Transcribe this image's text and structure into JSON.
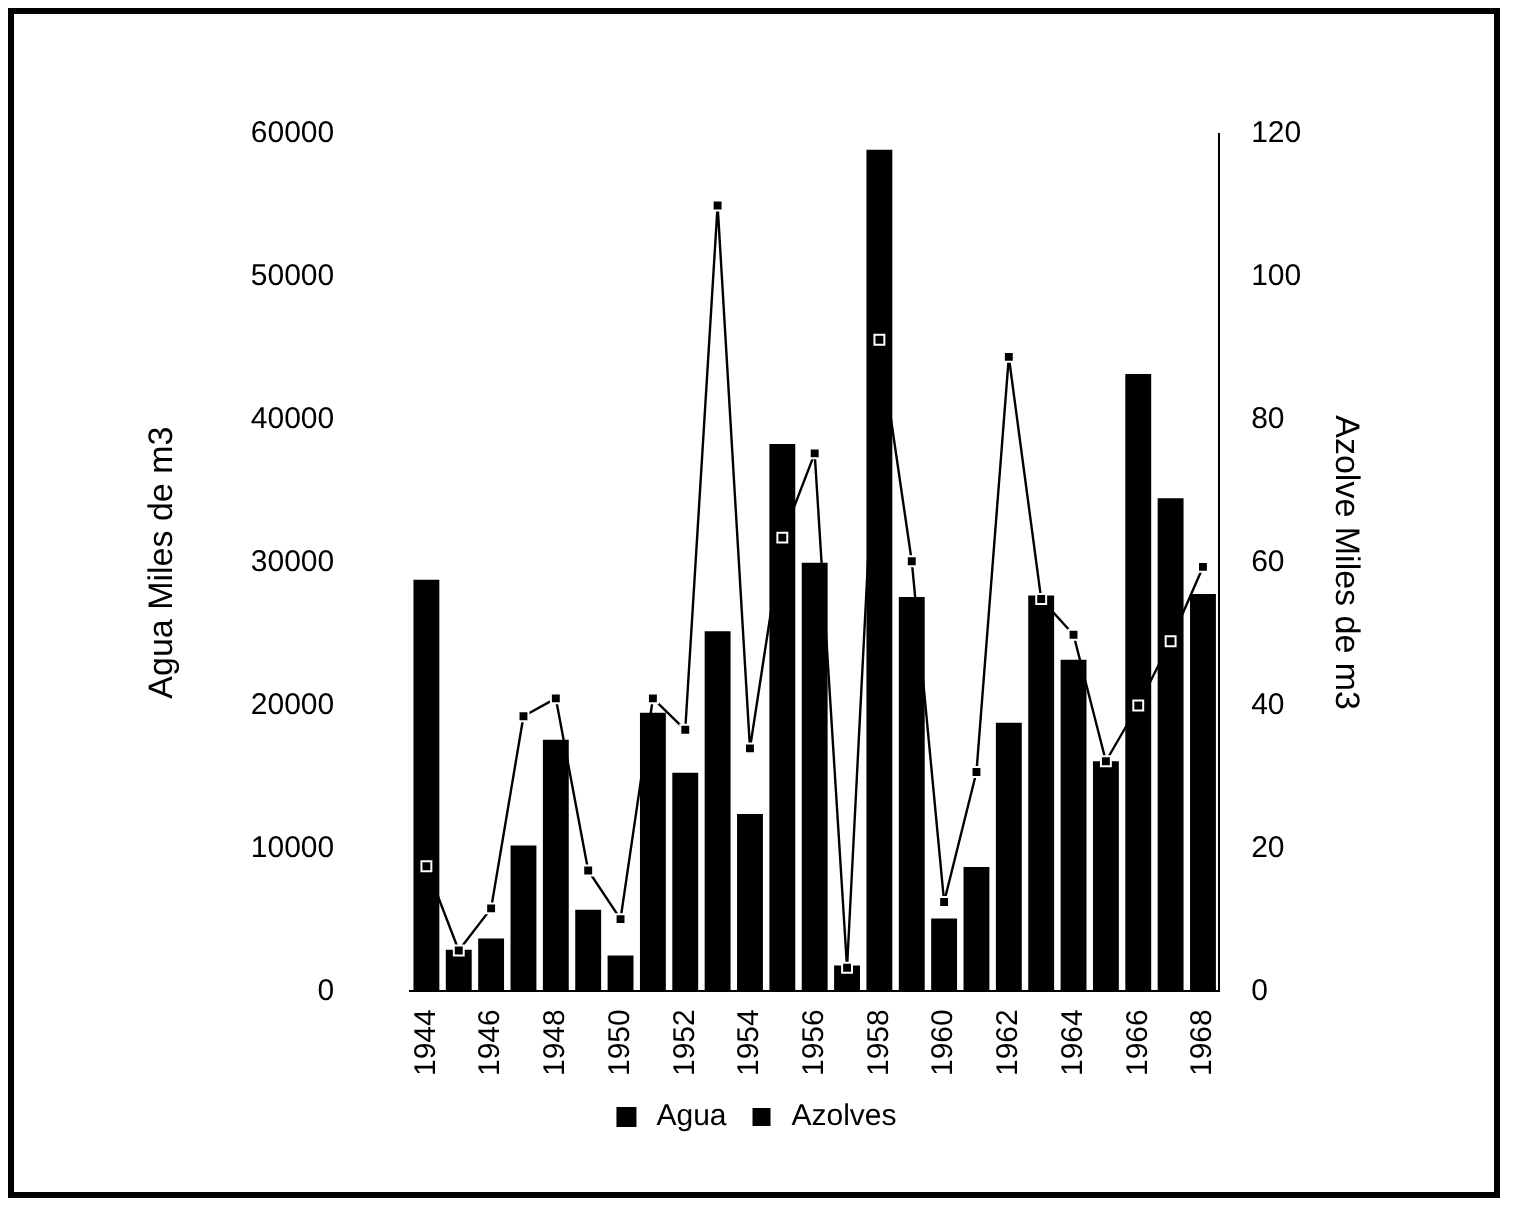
{
  "chart_data": {
    "type": "bar",
    "categories": [
      "1944",
      null,
      "1946",
      null,
      "1948",
      null,
      "1950",
      null,
      "1952",
      null,
      "1954",
      null,
      "1956",
      null,
      "1958",
      null,
      "1960",
      null,
      "1962",
      null,
      "1964",
      null,
      "1966",
      null,
      "1968"
    ],
    "series": [
      {
        "name": "Agua",
        "color": "#000000",
        "values": [
          28800,
          2900,
          3700,
          10200,
          17600,
          5700,
          2500,
          19500,
          15300,
          25200,
          12400,
          38300,
          30000,
          1800,
          58900,
          27600,
          5100,
          8700,
          18800,
          27700,
          23200,
          16100,
          43200,
          34500,
          27800
        ]
      },
      {
        "name": "Azolves",
        "type": "line",
        "axis": "y2",
        "color": "#000000",
        "values": [
          17.5,
          5.7,
          11.6,
          38.5,
          41,
          16.9,
          10.1,
          41,
          36.6,
          110,
          34,
          63.5,
          75.3,
          3.3,
          91.2,
          60.2,
          12.5,
          30.7,
          88.8,
          54.9,
          49.9,
          32.2,
          40,
          49,
          59.4
        ]
      }
    ],
    "ylabel": "Agua Miles de m3",
    "y2label": "Azolve Miles de m3",
    "ylim": [
      0,
      60000
    ],
    "yticks": [
      0,
      10000,
      20000,
      30000,
      40000,
      50000,
      60000
    ],
    "y2lim": [
      0,
      120
    ],
    "y2ticks": [
      0,
      20,
      40,
      60,
      80,
      100,
      120
    ],
    "grid": false,
    "legend": "bottom",
    "marker": "square",
    "line_style": "solid"
  }
}
